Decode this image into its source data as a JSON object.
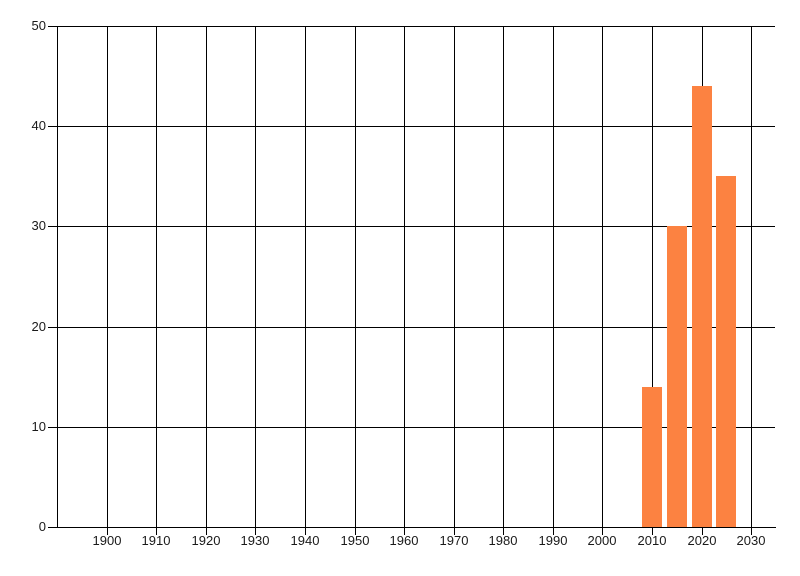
{
  "chart_data": {
    "type": "bar",
    "title": "",
    "xlabel": "",
    "ylabel": "",
    "x": [
      2010,
      2015,
      2020,
      2025
    ],
    "values": [
      14,
      30,
      44,
      35
    ],
    "bar_width_years": 4,
    "x_ticks": [
      1900,
      1910,
      1920,
      1930,
      1940,
      1950,
      1960,
      1970,
      1980,
      1990,
      2000,
      2010,
      2020,
      2030
    ],
    "y_ticks": [
      0,
      10,
      20,
      30,
      40,
      50
    ],
    "xlim": [
      1890,
      2035
    ],
    "ylim": [
      0,
      50
    ],
    "grid": true,
    "legend": "none",
    "colors": {
      "bar": "#fc8241",
      "grid": "#000000",
      "axis": "#000000",
      "text": "#1a1a1a",
      "background": "#ffffff"
    }
  }
}
